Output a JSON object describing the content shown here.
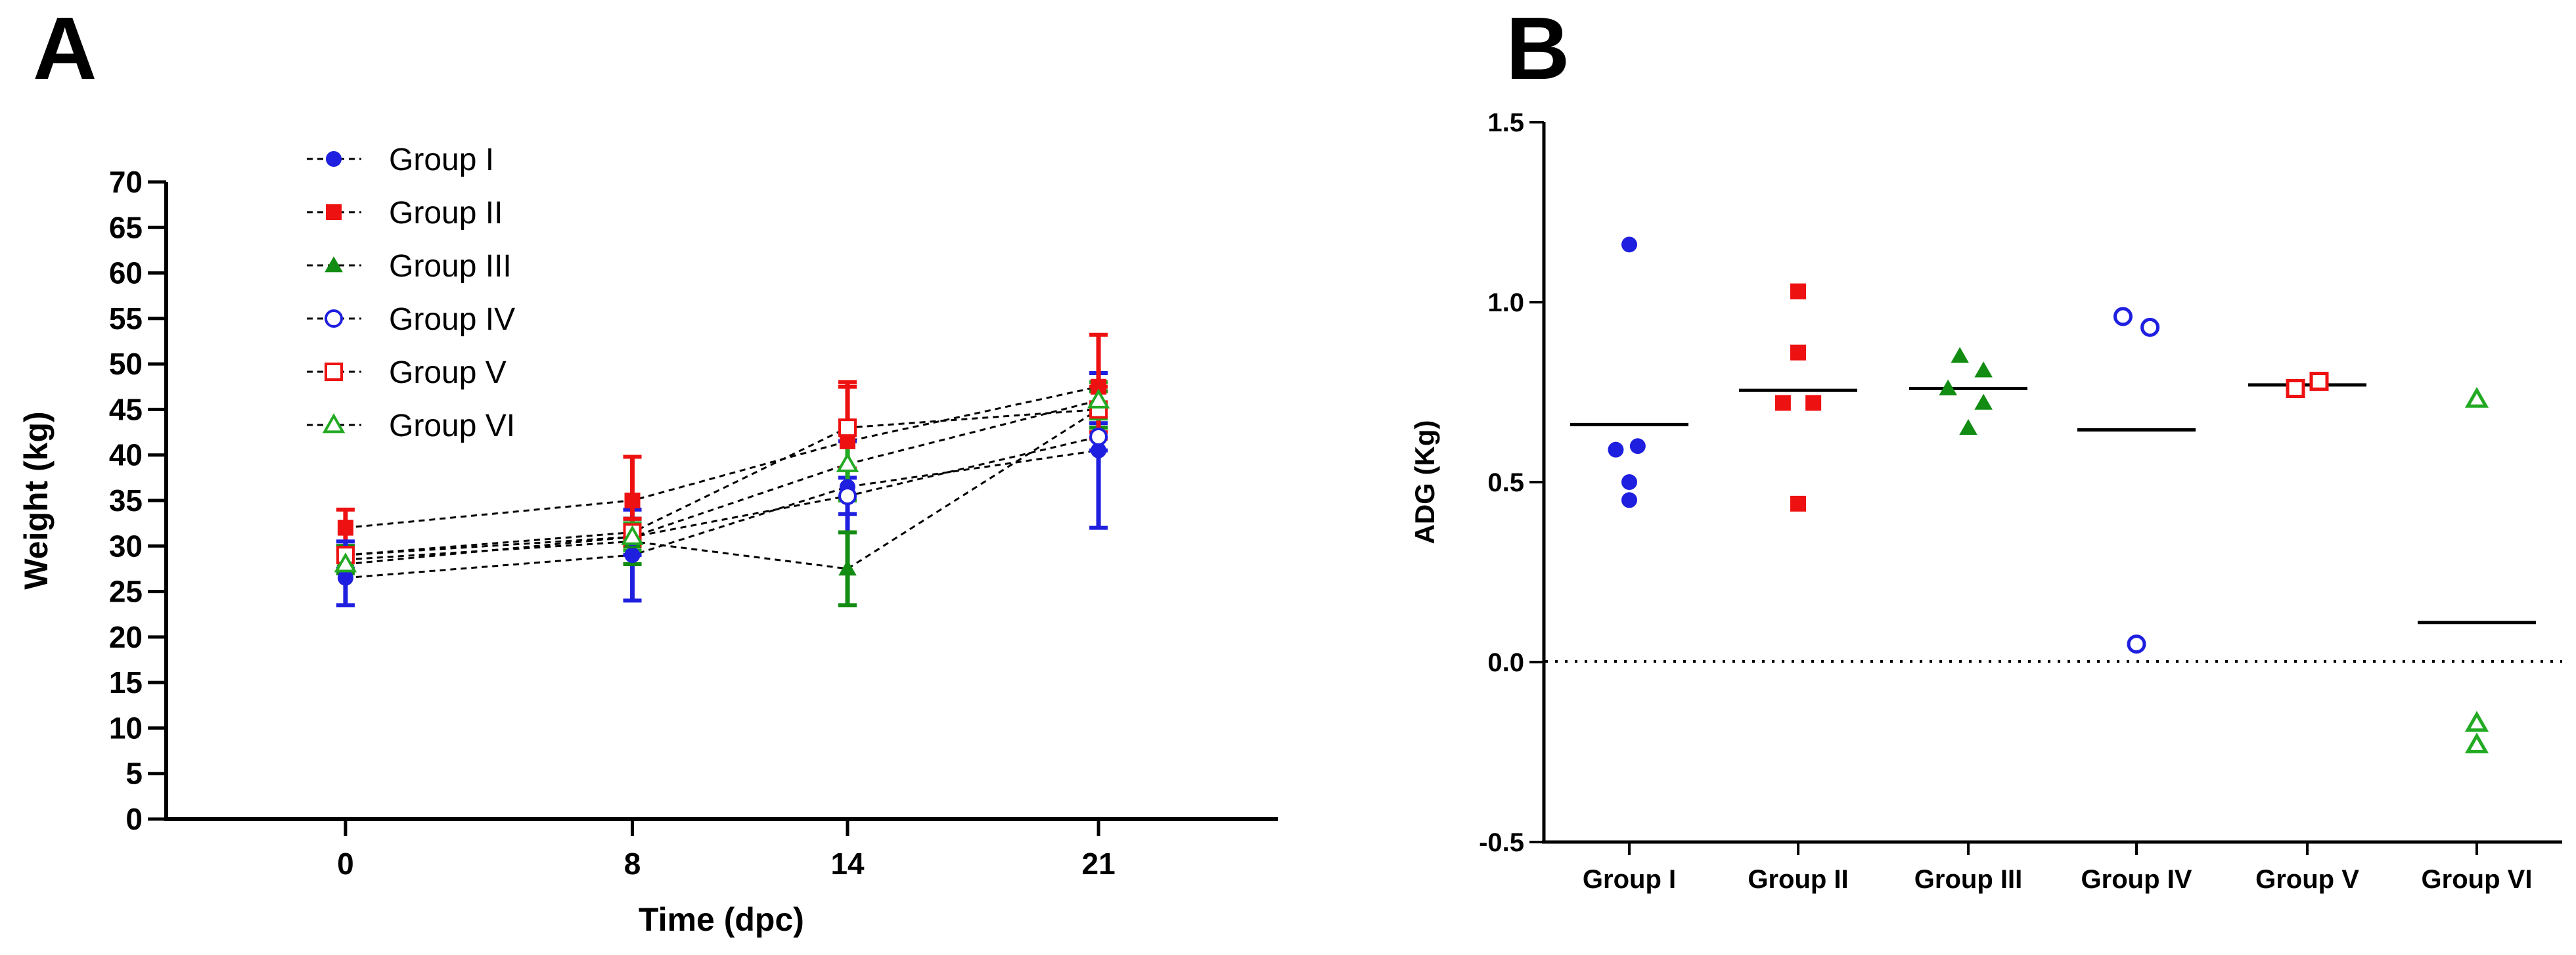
{
  "panels": {
    "a_label": "A",
    "b_label": "B"
  },
  "colors": {
    "group_i": "#1f1fe0",
    "group_ii": "#ee1111",
    "group_iii": "#128c12",
    "group_iv": "#1f1fe0",
    "group_v": "#ee1111",
    "group_vi": "#22aa22",
    "axis": "#000000"
  },
  "chart_data": [
    {
      "id": "A",
      "type": "line",
      "title": "",
      "xlabel": "Time (dpc)",
      "ylabel": "Weight (kg)",
      "ylim": [
        0,
        70
      ],
      "yticks": [
        "0",
        "5",
        "10",
        "15",
        "20",
        "25",
        "30",
        "35",
        "40",
        "45",
        "50",
        "55",
        "60",
        "65",
        "70"
      ],
      "xlim": [
        -5,
        26
      ],
      "x": [
        0,
        8,
        14,
        21
      ],
      "xtick_labels": [
        "0",
        "8",
        "14",
        "21"
      ],
      "legend_position": "top-left",
      "series": [
        {
          "name": "Group I",
          "marker": "circle-filled",
          "color": "#1f1fe0",
          "values": [
            26.5,
            29,
            36.5,
            40.5
          ],
          "errors": [
            3,
            5,
            5,
            8.5
          ]
        },
        {
          "name": "Group II",
          "marker": "square-filled",
          "color": "#ee1111",
          "values": [
            32,
            35,
            41.5,
            47.5
          ],
          "errors": [
            2,
            4.8,
            6.5,
            5.7
          ]
        },
        {
          "name": "Group III",
          "marker": "triangle-filled",
          "color": "#128c12",
          "values": [
            28.5,
            30.5,
            27.5,
            45
          ],
          "errors": [
            1.5,
            2.5,
            4,
            2
          ]
        },
        {
          "name": "Group IV",
          "marker": "circle-open",
          "color": "#1f1fe0",
          "values": [
            29,
            31,
            35.5,
            42
          ],
          "errors": [
            1.5,
            2,
            2,
            1.5
          ]
        },
        {
          "name": "Group V",
          "marker": "square-open",
          "color": "#ee1111",
          "values": [
            29,
            31.5,
            43,
            45
          ],
          "errors": [
            1,
            1.5,
            4.5,
            2.5
          ]
        },
        {
          "name": "Group VI",
          "marker": "triangle-open",
          "color": "#22aa22",
          "values": [
            28,
            31,
            39,
            46
          ],
          "errors": [
            1,
            1.5,
            4,
            2
          ]
        }
      ]
    },
    {
      "id": "B",
      "type": "scatter",
      "title": "",
      "xlabel": "",
      "ylabel": "ADG (Kg)",
      "ylim": [
        -0.5,
        1.5
      ],
      "yticks": [
        "-0.5",
        "0.0",
        "0.5",
        "1.0",
        "1.5"
      ],
      "reference_line": 0.0,
      "categories": [
        "Group I",
        "Group II",
        "Group III",
        "Group IV",
        "Group V",
        "Group VI"
      ],
      "groups": [
        {
          "name": "Group I",
          "marker": "circle-filled",
          "color": "#1f1fe0",
          "values": [
            1.16,
            0.6,
            0.59,
            0.5,
            0.45
          ],
          "offsets": [
            0,
            0.05,
            -0.08,
            0,
            0
          ],
          "mean": 0.66
        },
        {
          "name": "Group II",
          "marker": "square-filled",
          "color": "#ee1111",
          "values": [
            1.03,
            0.86,
            0.72,
            0.72,
            0.44
          ],
          "offsets": [
            0,
            0,
            -0.09,
            0.09,
            0
          ],
          "mean": 0.755
        },
        {
          "name": "Group III",
          "marker": "triangle-filled",
          "color": "#128c12",
          "values": [
            0.85,
            0.81,
            0.76,
            0.72,
            0.65
          ],
          "offsets": [
            -0.05,
            0.09,
            -0.12,
            0.09,
            0
          ],
          "mean": 0.76
        },
        {
          "name": "Group IV",
          "marker": "circle-open",
          "color": "#1f1fe0",
          "values": [
            0.96,
            0.93,
            0.05
          ],
          "offsets": [
            -0.08,
            0.08,
            0
          ],
          "mean": 0.645
        },
        {
          "name": "Group V",
          "marker": "square-open",
          "color": "#ee1111",
          "values": [
            0.78,
            0.76
          ],
          "offsets": [
            0.07,
            -0.07
          ],
          "mean": 0.77
        },
        {
          "name": "Group VI",
          "marker": "triangle-open",
          "color": "#22aa22",
          "values": [
            0.73,
            -0.17,
            -0.23
          ],
          "offsets": [
            0,
            0,
            0
          ],
          "mean": 0.11
        }
      ]
    }
  ]
}
